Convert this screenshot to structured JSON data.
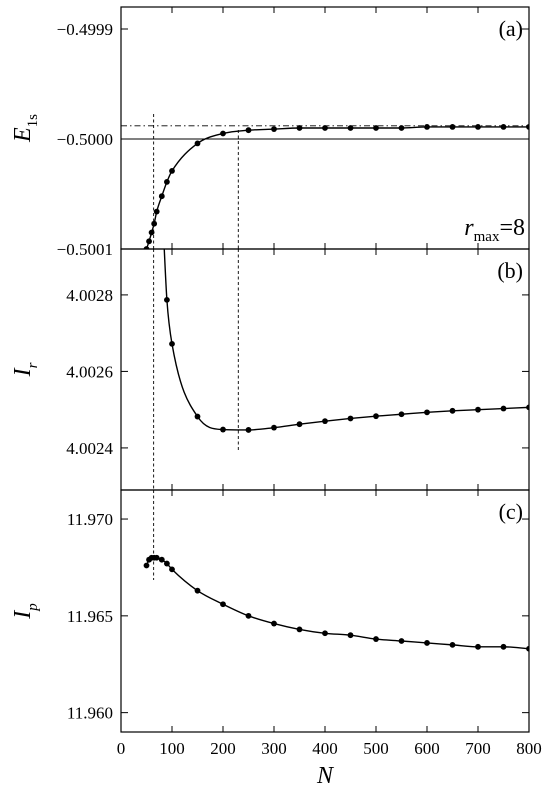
{
  "chart_data": [
    {
      "type": "line",
      "panel": "(a)",
      "ylabel": "E",
      "ylabel_sub": "1s",
      "xlim": [
        0,
        800
      ],
      "ylim": [
        -0.5001,
        -0.49988
      ],
      "yticks": [
        {
          "value": -0.4999,
          "label": "−0.4999"
        },
        {
          "value": -0.5,
          "label": "−0.5000"
        },
        {
          "value": -0.5001,
          "label": "−0.5001"
        }
      ],
      "annotation": {
        "var": "r",
        "sub": "max",
        "rest": "=8"
      },
      "reference_lines": {
        "solid_y": -0.5,
        "dashdot_y": -0.499988,
        "dotted_x": [
          64,
          230
        ]
      },
      "series": [
        {
          "x": [
            50,
            55,
            60,
            65,
            70,
            80,
            90,
            100,
            150,
            200,
            250,
            300,
            350,
            400,
            450,
            500,
            550,
            600,
            650,
            700,
            750,
            800
          ],
          "y": [
            -0.5001,
            -0.500093,
            -0.500085,
            -0.500077,
            -0.500066,
            -0.500052,
            -0.500039,
            -0.500029,
            -0.500004,
            -0.499995,
            -0.499992,
            -0.499991,
            -0.49999,
            -0.49999,
            -0.49999,
            -0.49999,
            -0.49999,
            -0.499989,
            -0.499989,
            -0.499989,
            -0.499989,
            -0.499989
          ]
        }
      ]
    },
    {
      "type": "line",
      "panel": "(b)",
      "ylabel": "I",
      "ylabel_sub": "r",
      "xlim": [
        0,
        800
      ],
      "ylim": [
        4.00229,
        4.00292
      ],
      "yticks": [
        {
          "value": 4.0028,
          "label": "4.0028"
        },
        {
          "value": 4.0026,
          "label": "4.0026"
        },
        {
          "value": 4.0024,
          "label": "4.0024"
        }
      ],
      "reference_lines": {
        "dotted_x": [
          64,
          230
        ]
      },
      "series": [
        {
          "x": [
            90,
            100,
            150,
            200,
            250,
            300,
            350,
            400,
            450,
            500,
            550,
            600,
            650,
            700,
            750,
            800
          ],
          "y": [
            4.002787,
            4.002672,
            4.002482,
            4.002448,
            4.002447,
            4.002453,
            4.002462,
            4.00247,
            4.002477,
            4.002483,
            4.002488,
            4.002493,
            4.002497,
            4.0025,
            4.002503,
            4.002506
          ]
        }
      ]
    },
    {
      "type": "line",
      "panel": "(c)",
      "ylabel": "I",
      "ylabel_sub": "p",
      "xlabel": "N",
      "xlim": [
        0,
        800
      ],
      "ylim": [
        11.959,
        11.9715
      ],
      "xticks": [
        0,
        100,
        200,
        300,
        400,
        500,
        600,
        700,
        800
      ],
      "yticks": [
        {
          "value": 11.97,
          "label": "11.970"
        },
        {
          "value": 11.965,
          "label": "11.965"
        },
        {
          "value": 11.96,
          "label": "11.960"
        }
      ],
      "reference_lines": {
        "dotted_x": [
          64
        ]
      },
      "series": [
        {
          "x": [
            50,
            55,
            60,
            65,
            70,
            80,
            90,
            100,
            150,
            200,
            250,
            300,
            350,
            400,
            450,
            500,
            550,
            600,
            650,
            700,
            750,
            800
          ],
          "y": [
            11.9676,
            11.9679,
            11.968,
            11.968,
            11.968,
            11.9679,
            11.9677,
            11.9674,
            11.9663,
            11.9656,
            11.965,
            11.9646,
            11.9643,
            11.9641,
            11.964,
            11.9638,
            11.9637,
            11.9636,
            11.9635,
            11.9634,
            11.9634,
            11.9633
          ]
        }
      ]
    }
  ]
}
